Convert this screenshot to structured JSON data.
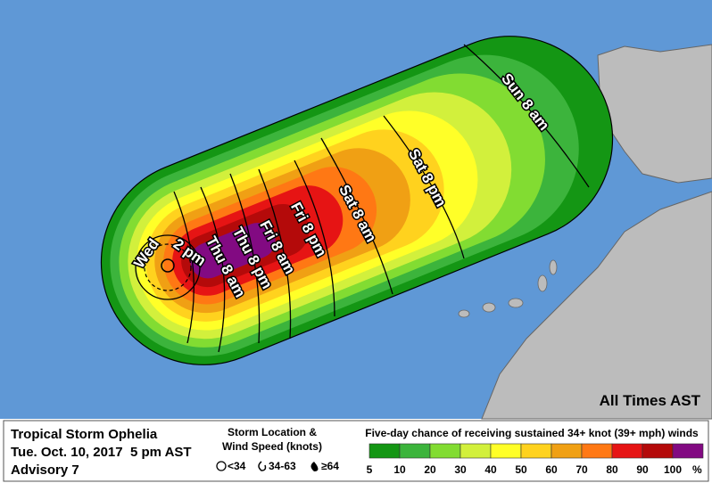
{
  "map": {
    "time_labels": [
      "Wed",
      "2 pm",
      "Thu 8 am",
      "Thu 8 pm",
      "Fri 8 am",
      "Fri 8 pm",
      "Sat 8 am",
      "Sat 8 pm",
      "Sun 8 am"
    ],
    "note": "All Times AST"
  },
  "footer": {
    "storm": "Tropical Storm Ophelia",
    "issued": "Tue. Oct. 10, 2017  5 pm AST",
    "advisory": "Advisory 7",
    "location_title": [
      "Storm Location &",
      "Wind Speed (knots)"
    ],
    "symbols": [
      "<34",
      "34-63",
      "≥64"
    ]
  },
  "legend": {
    "title": "Five-day chance of receiving sustained 34+ knot (39+ mph) winds",
    "ticks": [
      5,
      10,
      20,
      30,
      40,
      50,
      60,
      70,
      80,
      90,
      100
    ],
    "colors": [
      "#149614",
      "#3cb43c",
      "#82dc32",
      "#d2f03c",
      "#ffff28",
      "#ffd21e",
      "#f0a014",
      "#ff7814",
      "#e61414",
      "#b40a0a",
      "#820a82"
    ],
    "unit": "%"
  }
}
